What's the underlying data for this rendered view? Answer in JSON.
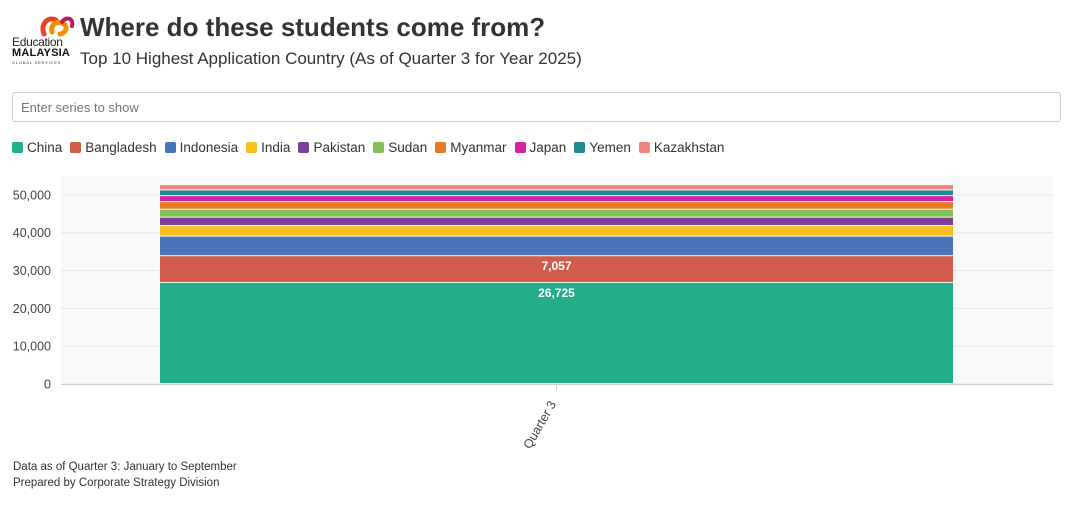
{
  "header": {
    "title": "Where do these students come from?",
    "subtitle": "Top 10 Highest Application Country (As of Quarter 3 for Year 2025)"
  },
  "logo": {
    "line1": "Education",
    "line2": "MALAYSIA",
    "line3": "GLOBAL SERVICES",
    "colors": [
      "#e8432b",
      "#f39200",
      "#c2185b"
    ]
  },
  "search": {
    "placeholder": "Enter series to show"
  },
  "legend": [
    {
      "label": "China",
      "color": "#23ae89"
    },
    {
      "label": "Bangladesh",
      "color": "#d05c4b"
    },
    {
      "label": "Indonesia",
      "color": "#4a75b9"
    },
    {
      "label": "India",
      "color": "#f6c01e"
    },
    {
      "label": "Pakistan",
      "color": "#7f3e98"
    },
    {
      "label": "Sudan",
      "color": "#86bd59"
    },
    {
      "label": "Myanmar",
      "color": "#e57b20"
    },
    {
      "label": "Japan",
      "color": "#d4239c"
    },
    {
      "label": "Yemen",
      "color": "#1f8a94"
    },
    {
      "label": "Kazakhstan",
      "color": "#f2837c"
    }
  ],
  "chart_data": {
    "type": "bar",
    "stacked": true,
    "categories": [
      "Quarter 3"
    ],
    "ylim": [
      0,
      55000
    ],
    "yticks": [
      0,
      10000,
      20000,
      30000,
      40000,
      50000
    ],
    "ytick_labels": [
      "0",
      "10,000",
      "20,000",
      "30,000",
      "40,000",
      "50,000"
    ],
    "series": [
      {
        "name": "China",
        "values": [
          26725
        ],
        "label": "26,725"
      },
      {
        "name": "Bangladesh",
        "values": [
          7057
        ],
        "label": "7,057"
      },
      {
        "name": "Indonesia",
        "values": [
          5200
        ]
      },
      {
        "name": "India",
        "values": [
          2800
        ]
      },
      {
        "name": "Pakistan",
        "values": [
          2200
        ]
      },
      {
        "name": "Sudan",
        "values": [
          2100
        ]
      },
      {
        "name": "Myanmar",
        "values": [
          2000
        ]
      },
      {
        "name": "Japan",
        "values": [
          1600
        ]
      },
      {
        "name": "Yemen",
        "values": [
          1500
        ]
      },
      {
        "name": "Kazakhstan",
        "values": [
          1400
        ]
      }
    ],
    "xlabel": "",
    "ylabel": ""
  },
  "footer": {
    "line1": "Data as of Quarter 3: January to September",
    "line2": "Prepared by Corporate Strategy Division"
  }
}
